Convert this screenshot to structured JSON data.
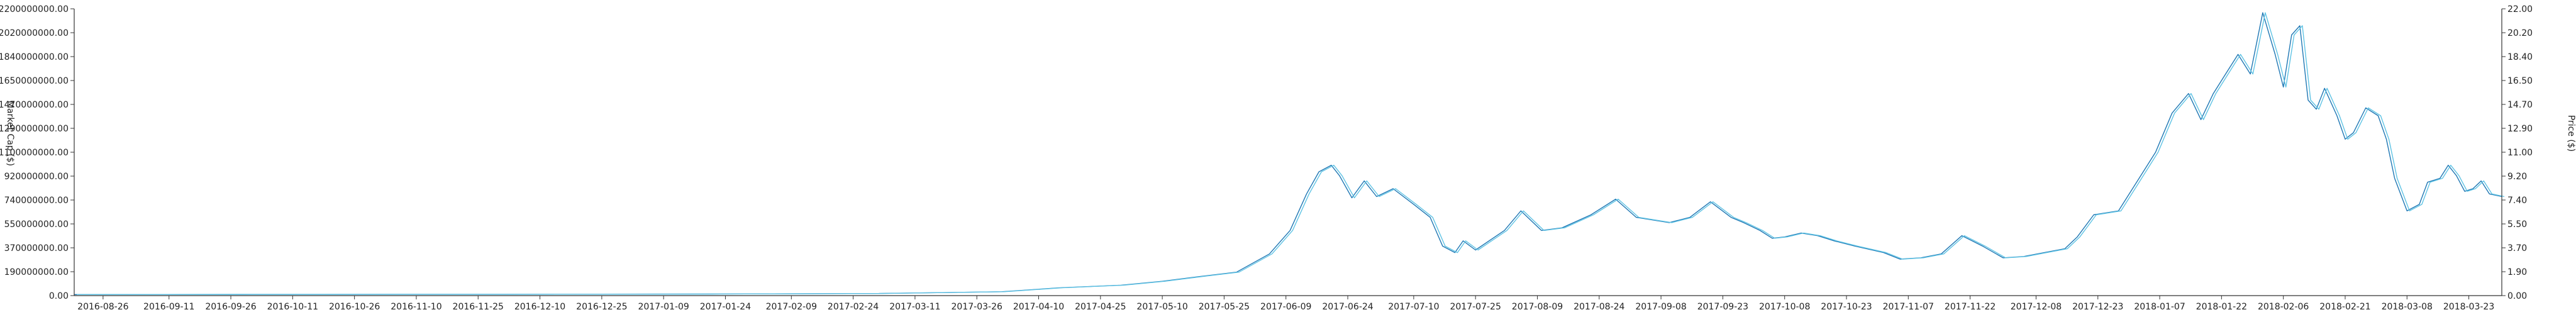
{
  "chart_data": {
    "type": "line",
    "title": "",
    "left_axis": {
      "label": "Market Cap ($)",
      "min": 0,
      "max": 2200000000,
      "ticks": [
        "0.00",
        "190000000.00",
        "370000000.00",
        "550000000.00",
        "740000000.00",
        "920000000.00",
        "1100000000.00",
        "1290000000.00",
        "1470000000.00",
        "1650000000.00",
        "1840000000.00",
        "2020000000.00",
        "2200000000.00"
      ]
    },
    "right_axis": {
      "label": "Price ($)",
      "min": 0,
      "max": 22,
      "ticks": [
        "0.00",
        "1.90",
        "3.70",
        "5.50",
        "7.40",
        "9.20",
        "11.00",
        "12.90",
        "14.70",
        "16.50",
        "18.40",
        "20.20",
        "22.00"
      ]
    },
    "x_axis": {
      "start": "2016-08-19",
      "end": "2018-03-31",
      "tick_labels": [
        "2016-08-26",
        "2016-09-11",
        "2016-09-26",
        "2016-10-11",
        "2016-10-26",
        "2016-11-10",
        "2016-11-25",
        "2016-12-10",
        "2016-12-25",
        "2017-01-09",
        "2017-01-24",
        "2017-02-09",
        "2017-02-24",
        "2017-03-11",
        "2017-03-26",
        "2017-04-10",
        "2017-04-25",
        "2017-05-10",
        "2017-05-25",
        "2017-06-09",
        "2017-06-24",
        "2017-07-10",
        "2017-07-25",
        "2017-08-09",
        "2017-08-24",
        "2017-09-08",
        "2017-09-23",
        "2017-10-08",
        "2017-10-23",
        "2017-11-07",
        "2017-11-22",
        "2017-12-08",
        "2017-12-23",
        "2018-01-07",
        "2018-01-22",
        "2018-02-06",
        "2018-02-21",
        "2018-03-08",
        "2018-03-23"
      ]
    },
    "series": [
      {
        "axis": "left",
        "color": "#1f77b4",
        "points": [
          [
            "2016-08-19",
            8000000
          ],
          [
            "2016-10-01",
            9000000
          ],
          [
            "2016-12-01",
            10000000
          ],
          [
            "2017-01-20",
            12000000
          ],
          [
            "2017-03-01",
            16000000
          ],
          [
            "2017-04-01",
            30000000
          ],
          [
            "2017-04-15",
            60000000
          ],
          [
            "2017-04-30",
            80000000
          ],
          [
            "2017-05-10",
            110000000
          ],
          [
            "2017-05-20",
            150000000
          ],
          [
            "2017-05-28",
            180000000
          ],
          [
            "2017-06-01",
            250000000
          ],
          [
            "2017-06-05",
            320000000
          ],
          [
            "2017-06-10",
            500000000
          ],
          [
            "2017-06-14",
            780000000
          ],
          [
            "2017-06-17",
            950000000
          ],
          [
            "2017-06-20",
            1000000000
          ],
          [
            "2017-06-22",
            920000000
          ],
          [
            "2017-06-25",
            750000000
          ],
          [
            "2017-06-28",
            880000000
          ],
          [
            "2017-07-01",
            760000000
          ],
          [
            "2017-07-05",
            820000000
          ],
          [
            "2017-07-10",
            700000000
          ],
          [
            "2017-07-14",
            600000000
          ],
          [
            "2017-07-17",
            380000000
          ],
          [
            "2017-07-20",
            330000000
          ],
          [
            "2017-07-22",
            420000000
          ],
          [
            "2017-07-25",
            350000000
          ],
          [
            "2017-08-01",
            500000000
          ],
          [
            "2017-08-05",
            650000000
          ],
          [
            "2017-08-10",
            500000000
          ],
          [
            "2017-08-15",
            520000000
          ],
          [
            "2017-08-22",
            620000000
          ],
          [
            "2017-08-28",
            740000000
          ],
          [
            "2017-09-02",
            600000000
          ],
          [
            "2017-09-10",
            560000000
          ],
          [
            "2017-09-15",
            600000000
          ],
          [
            "2017-09-20",
            720000000
          ],
          [
            "2017-09-25",
            600000000
          ],
          [
            "2017-09-28",
            560000000
          ],
          [
            "2017-10-02",
            500000000
          ],
          [
            "2017-10-05",
            440000000
          ],
          [
            "2017-10-08",
            450000000
          ],
          [
            "2017-10-12",
            480000000
          ],
          [
            "2017-10-16",
            460000000
          ],
          [
            "2017-10-20",
            420000000
          ],
          [
            "2017-10-25",
            380000000
          ],
          [
            "2017-11-01",
            330000000
          ],
          [
            "2017-11-05",
            280000000
          ],
          [
            "2017-11-10",
            290000000
          ],
          [
            "2017-11-15",
            320000000
          ],
          [
            "2017-11-20",
            460000000
          ],
          [
            "2017-11-25",
            380000000
          ],
          [
            "2017-11-30",
            290000000
          ],
          [
            "2017-12-05",
            300000000
          ],
          [
            "2017-12-10",
            330000000
          ],
          [
            "2017-12-15",
            360000000
          ],
          [
            "2017-12-18",
            450000000
          ],
          [
            "2017-12-22",
            620000000
          ],
          [
            "2017-12-28",
            650000000
          ],
          [
            "2018-01-02",
            900000000
          ],
          [
            "2018-01-06",
            1100000000
          ],
          [
            "2018-01-10",
            1400000000
          ],
          [
            "2018-01-14",
            1550000000
          ],
          [
            "2018-01-17",
            1350000000
          ],
          [
            "2018-01-20",
            1550000000
          ],
          [
            "2018-01-23",
            1700000000
          ],
          [
            "2018-01-26",
            1850000000
          ],
          [
            "2018-01-29",
            1700000000
          ],
          [
            "2018-02-01",
            2170000000
          ],
          [
            "2018-02-04",
            1850000000
          ],
          [
            "2018-02-06",
            1600000000
          ],
          [
            "2018-02-08",
            2000000000
          ],
          [
            "2018-02-10",
            2070000000
          ],
          [
            "2018-02-12",
            1500000000
          ],
          [
            "2018-02-14",
            1430000000
          ],
          [
            "2018-02-16",
            1590000000
          ],
          [
            "2018-02-19",
            1380000000
          ],
          [
            "2018-02-21",
            1200000000
          ],
          [
            "2018-02-23",
            1250000000
          ],
          [
            "2018-02-26",
            1440000000
          ],
          [
            "2018-03-01",
            1380000000
          ],
          [
            "2018-03-03",
            1200000000
          ],
          [
            "2018-03-05",
            900000000
          ],
          [
            "2018-03-08",
            650000000
          ],
          [
            "2018-03-11",
            700000000
          ],
          [
            "2018-03-13",
            870000000
          ],
          [
            "2018-03-16",
            900000000
          ],
          [
            "2018-03-18",
            1000000000
          ],
          [
            "2018-03-20",
            920000000
          ],
          [
            "2018-03-22",
            800000000
          ],
          [
            "2018-03-24",
            820000000
          ],
          [
            "2018-03-26",
            880000000
          ],
          [
            "2018-03-28",
            780000000
          ],
          [
            "2018-03-31",
            760000000
          ]
        ]
      },
      {
        "axis": "right",
        "color": "#5fc3e4",
        "points": [
          [
            "2016-08-19",
            0.08
          ],
          [
            "2016-10-01",
            0.09
          ],
          [
            "2016-12-01",
            0.1
          ],
          [
            "2017-01-20",
            0.12
          ],
          [
            "2017-03-01",
            0.16
          ],
          [
            "2017-04-01",
            0.3
          ],
          [
            "2017-04-15",
            0.6
          ],
          [
            "2017-04-30",
            0.8
          ],
          [
            "2017-05-10",
            1.1
          ],
          [
            "2017-05-20",
            1.5
          ],
          [
            "2017-05-28",
            1.8
          ],
          [
            "2017-06-01",
            2.5
          ],
          [
            "2017-06-05",
            3.2
          ],
          [
            "2017-06-10",
            5.0
          ],
          [
            "2017-06-14",
            7.8
          ],
          [
            "2017-06-17",
            9.5
          ],
          [
            "2017-06-20",
            10.0
          ],
          [
            "2017-06-22",
            9.2
          ],
          [
            "2017-06-25",
            7.5
          ],
          [
            "2017-06-28",
            8.8
          ],
          [
            "2017-07-01",
            7.6
          ],
          [
            "2017-07-05",
            8.2
          ],
          [
            "2017-07-10",
            7.0
          ],
          [
            "2017-07-14",
            6.0
          ],
          [
            "2017-07-17",
            3.8
          ],
          [
            "2017-07-20",
            3.3
          ],
          [
            "2017-07-22",
            4.2
          ],
          [
            "2017-07-25",
            3.5
          ],
          [
            "2017-08-01",
            5.0
          ],
          [
            "2017-08-05",
            6.5
          ],
          [
            "2017-08-10",
            5.0
          ],
          [
            "2017-08-15",
            5.2
          ],
          [
            "2017-08-22",
            6.2
          ],
          [
            "2017-08-28",
            7.4
          ],
          [
            "2017-09-02",
            6.0
          ],
          [
            "2017-09-10",
            5.6
          ],
          [
            "2017-09-15",
            6.0
          ],
          [
            "2017-09-20",
            7.2
          ],
          [
            "2017-09-25",
            6.0
          ],
          [
            "2017-09-28",
            5.6
          ],
          [
            "2017-10-02",
            5.0
          ],
          [
            "2017-10-05",
            4.4
          ],
          [
            "2017-10-08",
            4.5
          ],
          [
            "2017-10-12",
            4.8
          ],
          [
            "2017-10-16",
            4.6
          ],
          [
            "2017-10-20",
            4.2
          ],
          [
            "2017-10-25",
            3.8
          ],
          [
            "2017-11-01",
            3.3
          ],
          [
            "2017-11-05",
            2.8
          ],
          [
            "2017-11-10",
            2.9
          ],
          [
            "2017-11-15",
            3.2
          ],
          [
            "2017-11-20",
            4.6
          ],
          [
            "2017-11-25",
            3.8
          ],
          [
            "2017-11-30",
            2.9
          ],
          [
            "2017-12-05",
            3.0
          ],
          [
            "2017-12-10",
            3.3
          ],
          [
            "2017-12-15",
            3.6
          ],
          [
            "2017-12-18",
            4.5
          ],
          [
            "2017-12-22",
            6.2
          ],
          [
            "2017-12-28",
            6.5
          ],
          [
            "2018-01-02",
            9.0
          ],
          [
            "2018-01-06",
            11.0
          ],
          [
            "2018-01-10",
            14.0
          ],
          [
            "2018-01-14",
            15.5
          ],
          [
            "2018-01-17",
            13.5
          ],
          [
            "2018-01-20",
            15.5
          ],
          [
            "2018-01-23",
            17.0
          ],
          [
            "2018-01-26",
            18.5
          ],
          [
            "2018-01-29",
            17.0
          ],
          [
            "2018-02-01",
            21.7
          ],
          [
            "2018-02-04",
            18.5
          ],
          [
            "2018-02-06",
            16.0
          ],
          [
            "2018-02-08",
            20.0
          ],
          [
            "2018-02-10",
            20.7
          ],
          [
            "2018-02-12",
            15.0
          ],
          [
            "2018-02-14",
            14.3
          ],
          [
            "2018-02-16",
            15.9
          ],
          [
            "2018-02-19",
            13.8
          ],
          [
            "2018-02-21",
            12.0
          ],
          [
            "2018-02-23",
            12.5
          ],
          [
            "2018-02-26",
            14.4
          ],
          [
            "2018-03-01",
            13.8
          ],
          [
            "2018-03-03",
            12.0
          ],
          [
            "2018-03-05",
            9.0
          ],
          [
            "2018-03-08",
            6.5
          ],
          [
            "2018-03-11",
            7.0
          ],
          [
            "2018-03-13",
            8.7
          ],
          [
            "2018-03-16",
            9.0
          ],
          [
            "2018-03-18",
            10.0
          ],
          [
            "2018-03-20",
            9.2
          ],
          [
            "2018-03-22",
            8.0
          ],
          [
            "2018-03-24",
            8.2
          ],
          [
            "2018-03-26",
            8.8
          ],
          [
            "2018-03-28",
            7.8
          ],
          [
            "2018-03-31",
            7.6
          ]
        ]
      }
    ],
    "grid": false,
    "legend": "none"
  }
}
